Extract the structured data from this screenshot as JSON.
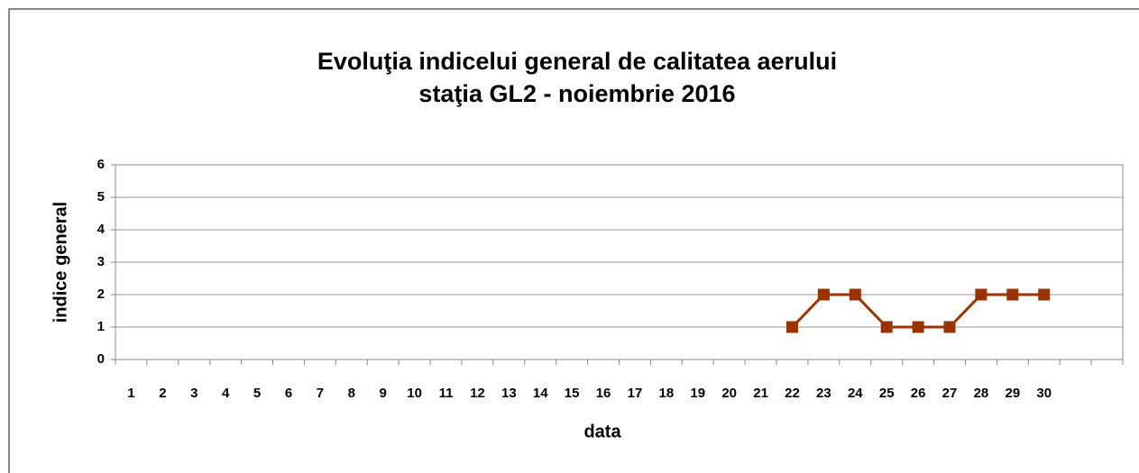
{
  "chart_data": {
    "type": "line",
    "title": [
      "Evoluţia indicelui general de calitatea aerului",
      "staţia GL2 - noiembrie 2016"
    ],
    "x_label": "data",
    "y_label": "indice general",
    "categories": [
      "1",
      "2",
      "3",
      "4",
      "5",
      "6",
      "7",
      "8",
      "9",
      "10",
      "11",
      "12",
      "13",
      "14",
      "15",
      "16",
      "17",
      "18",
      "19",
      "20",
      "21",
      "22",
      "23",
      "24",
      "25",
      "26",
      "27",
      "28",
      "29",
      "30",
      null,
      null
    ],
    "series": [
      {
        "name": "indice general",
        "color": "#993300",
        "values": [
          null,
          null,
          null,
          null,
          null,
          null,
          null,
          null,
          null,
          null,
          null,
          null,
          null,
          null,
          null,
          null,
          null,
          null,
          null,
          null,
          null,
          1,
          2,
          2,
          1,
          1,
          1,
          2,
          2,
          2,
          null,
          null
        ]
      }
    ],
    "ylim": [
      0,
      6
    ],
    "yticks": [
      0,
      1,
      2,
      3,
      4,
      5,
      6
    ],
    "grid": true
  }
}
